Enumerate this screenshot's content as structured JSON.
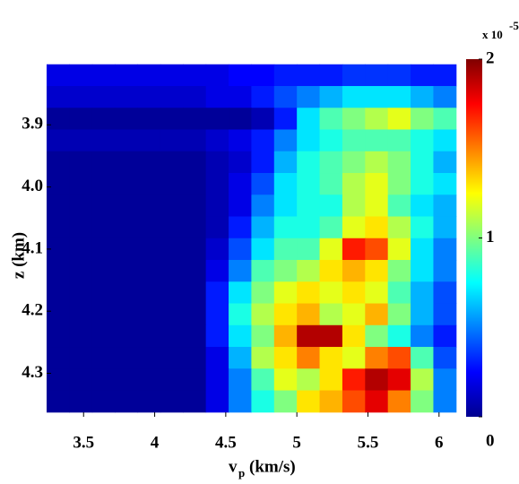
{
  "chart_data": {
    "type": "heatmap",
    "xlabel": "v",
    "xlabel_sub": "p",
    "xlabel_unit": "(km/s)",
    "ylabel": "z (km)",
    "colorbar_label": "x 10",
    "colorbar_exponent": "-5",
    "colormap": "jet",
    "clim": [
      0,
      2
    ],
    "cticks": [
      0,
      1,
      2
    ],
    "xlim": [
      3.24,
      6.14
    ],
    "ylim": [
      4.37,
      3.8
    ],
    "xticks": [
      3.5,
      4,
      4.5,
      5,
      5.5,
      6
    ],
    "yticks": [
      3.9,
      {
        "value": 4,
        "label": "4.0"
      },
      4.1,
      4.2,
      4.3
    ],
    "x": [
      3.32,
      3.48,
      3.64,
      3.8,
      3.96,
      4.12,
      4.28,
      4.44,
      4.6,
      4.76,
      4.92,
      5.08,
      5.24,
      5.4,
      5.56,
      5.72,
      5.88,
      6.04
    ],
    "y": [
      3.82,
      3.855,
      3.89,
      3.925,
      3.96,
      3.995,
      4.03,
      4.065,
      4.1,
      4.135,
      4.17,
      4.205,
      4.24,
      4.275,
      4.31,
      4.345
    ],
    "z": [
      [
        0.2,
        0.2,
        0.2,
        0.2,
        0.2,
        0.2,
        0.2,
        0.2,
        0.25,
        0.25,
        0.3,
        0.3,
        0.3,
        0.35,
        0.35,
        0.35,
        0.3,
        0.3
      ],
      [
        0.15,
        0.15,
        0.15,
        0.15,
        0.15,
        0.15,
        0.15,
        0.2,
        0.2,
        0.3,
        0.4,
        0.5,
        0.6,
        0.7,
        0.7,
        0.7,
        0.6,
        0.5
      ],
      [
        0.05,
        0.05,
        0.05,
        0.05,
        0.05,
        0.05,
        0.05,
        0.05,
        0.05,
        0.1,
        0.3,
        0.7,
        0.9,
        1.0,
        1.1,
        1.2,
        1.0,
        0.9
      ],
      [
        0.1,
        0.1,
        0.1,
        0.1,
        0.1,
        0.1,
        0.1,
        0.15,
        0.2,
        0.3,
        0.5,
        0.7,
        0.8,
        0.9,
        0.9,
        0.9,
        0.8,
        0.7
      ],
      [
        0.05,
        0.05,
        0.05,
        0.05,
        0.05,
        0.05,
        0.05,
        0.1,
        0.15,
        0.3,
        0.6,
        0.8,
        0.9,
        1.0,
        1.1,
        1.0,
        0.8,
        0.6
      ],
      [
        0.05,
        0.05,
        0.05,
        0.05,
        0.05,
        0.05,
        0.05,
        0.1,
        0.2,
        0.4,
        0.7,
        0.8,
        0.9,
        1.1,
        1.2,
        1.0,
        0.8,
        0.7
      ],
      [
        0.05,
        0.05,
        0.05,
        0.05,
        0.05,
        0.05,
        0.05,
        0.1,
        0.2,
        0.5,
        0.7,
        0.8,
        0.8,
        1.1,
        1.2,
        0.9,
        0.7,
        0.6
      ],
      [
        0.05,
        0.05,
        0.05,
        0.05,
        0.05,
        0.05,
        0.05,
        0.1,
        0.3,
        0.6,
        0.8,
        0.8,
        0.9,
        1.2,
        1.3,
        1.1,
        0.8,
        0.6
      ],
      [
        0.05,
        0.05,
        0.05,
        0.05,
        0.05,
        0.05,
        0.05,
        0.15,
        0.4,
        0.7,
        0.9,
        0.9,
        1.2,
        1.7,
        1.6,
        1.2,
        0.7,
        0.5
      ],
      [
        0.05,
        0.05,
        0.05,
        0.05,
        0.05,
        0.05,
        0.05,
        0.2,
        0.5,
        0.9,
        1.0,
        1.1,
        1.3,
        1.4,
        1.3,
        1.0,
        0.7,
        0.5
      ],
      [
        0.05,
        0.05,
        0.05,
        0.05,
        0.05,
        0.05,
        0.05,
        0.3,
        0.7,
        1.0,
        1.2,
        1.3,
        1.2,
        1.3,
        1.2,
        0.9,
        0.6,
        0.4
      ],
      [
        0.05,
        0.05,
        0.05,
        0.05,
        0.05,
        0.05,
        0.05,
        0.3,
        0.8,
        1.1,
        1.3,
        1.4,
        1.1,
        1.2,
        1.4,
        1.0,
        0.6,
        0.4
      ],
      [
        0.05,
        0.05,
        0.05,
        0.05,
        0.05,
        0.05,
        0.05,
        0.3,
        0.7,
        1.0,
        1.4,
        1.9,
        1.9,
        1.3,
        1.0,
        0.8,
        0.5,
        0.3
      ],
      [
        0.05,
        0.05,
        0.05,
        0.05,
        0.05,
        0.05,
        0.05,
        0.2,
        0.6,
        1.1,
        1.3,
        1.5,
        1.3,
        1.2,
        1.5,
        1.6,
        0.9,
        0.4
      ],
      [
        0.05,
        0.05,
        0.05,
        0.05,
        0.05,
        0.05,
        0.05,
        0.2,
        0.5,
        0.9,
        1.2,
        1.1,
        1.3,
        1.7,
        1.9,
        1.8,
        1.1,
        0.5
      ],
      [
        0.05,
        0.05,
        0.05,
        0.05,
        0.05,
        0.05,
        0.05,
        0.2,
        0.5,
        0.8,
        1.0,
        1.3,
        1.4,
        1.6,
        1.8,
        1.5,
        1.0,
        0.5
      ]
    ]
  }
}
